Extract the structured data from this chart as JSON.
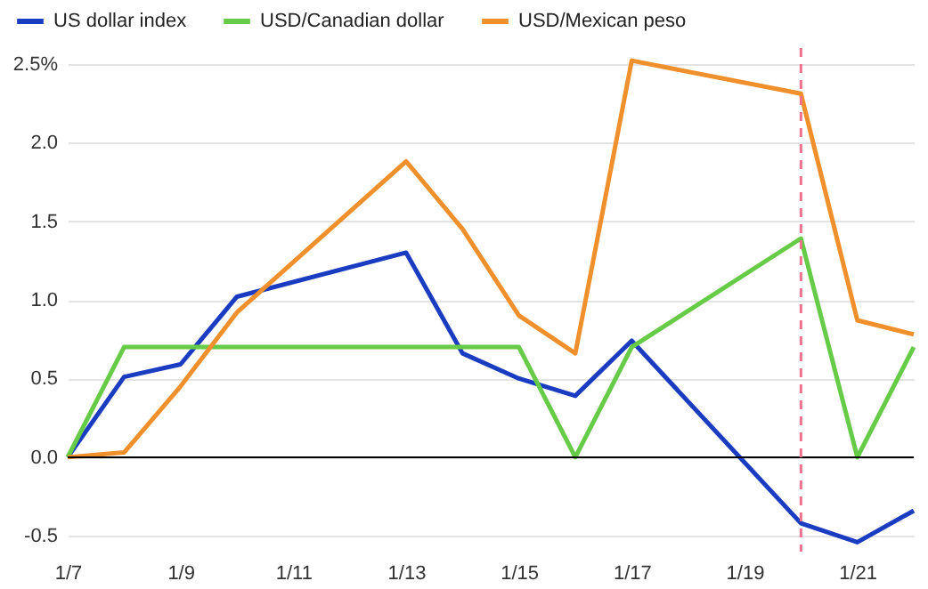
{
  "chart_data": {
    "type": "line",
    "x": [
      "--01-07",
      "--01-08",
      "--01-09",
      "--01-10",
      "--01-13",
      "--01-14",
      "--01-15",
      "--01-16",
      "--01-17",
      "--01-20",
      "--01-21",
      "--01-22"
    ],
    "series": [
      {
        "name": "US dollar index",
        "color": "#1a3cc0",
        "values": [
          0,
          0.51,
          0.59,
          1.02,
          1.3,
          0.66,
          0.5,
          0.39,
          0.74,
          -0.42,
          -0.54,
          -0.34
        ]
      },
      {
        "name": "USD/Canadian dollar",
        "color": "#66cc47",
        "values": [
          0,
          0.7,
          0.7,
          0.7,
          0.7,
          0.7,
          0.7,
          0,
          0.7,
          1.39,
          0,
          0.7
        ]
      },
      {
        "name": "USD/Mexican peso",
        "color": "#f0902c",
        "values": [
          0,
          0.03,
          0.45,
          0.92,
          1.88,
          1.45,
          0.9,
          0.66,
          2.52,
          2.31,
          0.87,
          0.78
        ]
      }
    ],
    "xlim": [
      "--01-07",
      "--01-22"
    ],
    "xticks": [
      {
        "value": "--01-07",
        "label": "1/7"
      },
      {
        "value": "--01-09",
        "label": "1/9"
      },
      {
        "value": "--01-11",
        "label": "1/11"
      },
      {
        "value": "--01-13",
        "label": "1/13"
      },
      {
        "value": "--01-15",
        "label": "1/15"
      },
      {
        "value": "--01-17",
        "label": "1/17"
      },
      {
        "value": "--01-19",
        "label": "1/19"
      },
      {
        "value": "--01-21",
        "label": "1/21"
      }
    ],
    "ylim": [
      -0.6,
      2.6
    ],
    "yticks": [
      {
        "value": -0.5,
        "label": "-0.5"
      },
      {
        "value": 0,
        "label": "0.0"
      },
      {
        "value": 0.5,
        "label": "0.5"
      },
      {
        "value": 1,
        "label": "1.0"
      },
      {
        "value": 1.5,
        "label": "1.5"
      },
      {
        "value": 2,
        "label": "2.0"
      },
      {
        "value": 2.5,
        "label": "2.5%"
      }
    ],
    "ref_lines": [
      {
        "axis": "y",
        "value": 0,
        "color": "#000000"
      },
      {
        "axis": "x",
        "value": "--01-20",
        "color": "#f07090",
        "line_style": "dashed"
      }
    ],
    "grid": "y",
    "legend": "top left"
  }
}
